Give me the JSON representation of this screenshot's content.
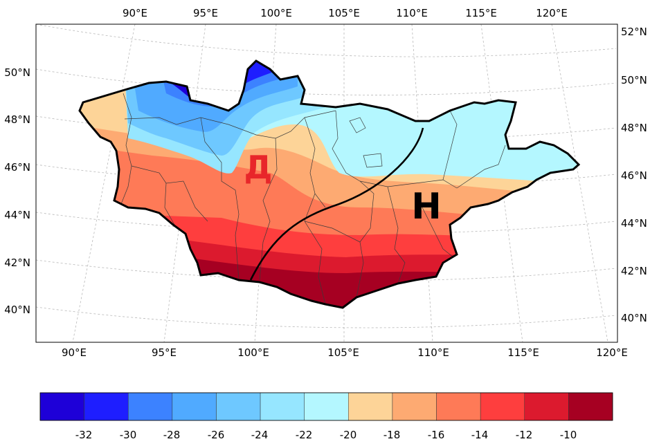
{
  "map": {
    "top_lon_labels": [
      "90°E",
      "95°E",
      "100°E",
      "105°E",
      "110°E",
      "115°E",
      "120°E"
    ],
    "bottom_lon_labels": [
      "90°E",
      "95°E",
      "100°E",
      "105°E",
      "110°E",
      "115°E",
      "120°E"
    ],
    "left_lat_labels": [
      "50°N",
      "48°N",
      "46°N",
      "44°N",
      "42°N",
      "40°N"
    ],
    "right_lat_labels": [
      "52°N",
      "50°N",
      "48°N",
      "46°N",
      "44°N",
      "42°N",
      "40°N"
    ],
    "low_marker": "Д",
    "high_marker": "H",
    "low_marker_color": "#e8262a",
    "high_marker_color": "#000000"
  },
  "colorbar": {
    "labels": [
      "-32",
      "-30",
      "-28",
      "-26",
      "-24",
      "-22",
      "-20",
      "-18",
      "-16",
      "-14",
      "-12",
      "-10"
    ],
    "colors": [
      "#1e00d8",
      "#1e1eff",
      "#3c82ff",
      "#50aaff",
      "#6ec8ff",
      "#96e6ff",
      "#b4f7ff",
      "#fdd498",
      "#fdaa72",
      "#fe7a57",
      "#fe3e3e",
      "#dc1a2e",
      "#a60022"
    ]
  }
}
